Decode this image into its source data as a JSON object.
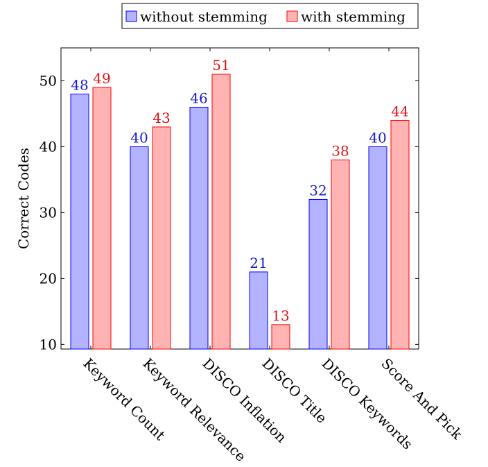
{
  "chart_data": {
    "type": "bar",
    "ylabel": "Correct Codes",
    "ylim": [
      9.3,
      55
    ],
    "yticks": [
      10,
      20,
      30,
      40,
      50
    ],
    "categories": [
      "Keyword Count",
      "Keyword Relevance",
      "DISCO Inflation",
      "DISCO Title",
      "DISCO Keywords",
      "Score And Pick"
    ],
    "series": [
      {
        "name": "without stemming",
        "values": [
          48,
          40,
          46,
          21,
          32,
          40
        ],
        "fill": "#b3b3ff",
        "stroke": "#0000ff",
        "label_color": "#1a1acc"
      },
      {
        "name": "with stemming",
        "values": [
          49,
          43,
          51,
          13,
          38,
          44
        ],
        "fill": "#ffb3b3",
        "stroke": "#ff0000",
        "label_color": "#dd1111"
      }
    ],
    "legend_position": "top",
    "grid": false
  }
}
